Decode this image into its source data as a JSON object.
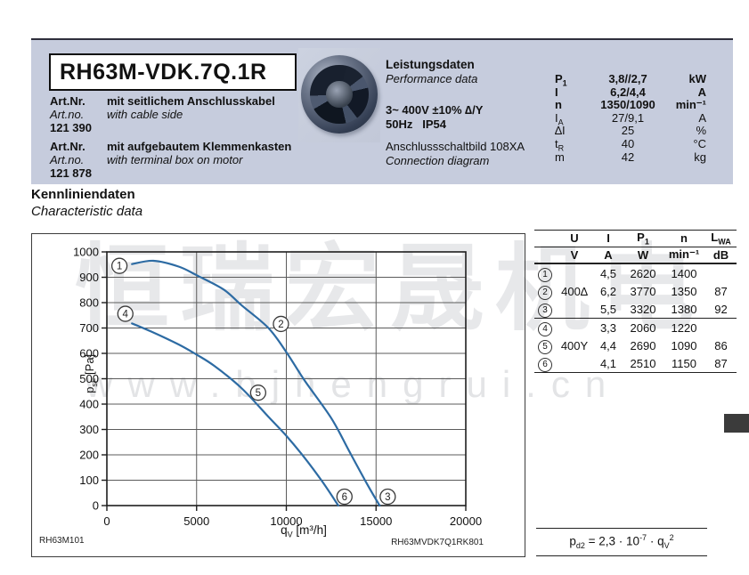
{
  "header": {
    "model": "RH63M-VDK.7Q.1R",
    "art1": {
      "label_de": "Art.Nr.",
      "desc_de": "mit seitlichem Anschlusskabel",
      "label_en": "Art.no.",
      "desc_en": "with cable side",
      "number": "121 390"
    },
    "art2": {
      "label_de": "Art.Nr.",
      "desc_de": "mit aufgebautem Klemmenkasten",
      "label_en": "Art.no.",
      "desc_en": "with terminal box on motor",
      "number": "121 878"
    },
    "performance": {
      "title_de": "Leistungsdaten",
      "title_en": "Performance data",
      "voltage": "3~ 400V ±10% ∆/Y",
      "frequency": "50Hz",
      "protection": "IP54",
      "connection_de": "Anschlussschaltbild 108XA",
      "connection_en": "Connection diagram"
    },
    "params": [
      {
        "sym": "P",
        "sub": "1",
        "value": "3,8//2,7",
        "unit": "kW",
        "bold": true
      },
      {
        "sym": "I",
        "sub": "",
        "value": "6,2/4,4",
        "unit": "A",
        "bold": true
      },
      {
        "sym": "n",
        "sub": "",
        "value": "1350/1090",
        "unit": "min⁻¹",
        "bold": true
      },
      {
        "sym": "I",
        "sub": "A",
        "value": "27/9,1",
        "unit": "A",
        "bold": false
      },
      {
        "sym": "∆I",
        "sub": "",
        "value": "25",
        "unit": "%",
        "bold": false
      },
      {
        "sym": "t",
        "sub": "R",
        "value": "40",
        "unit": "°C",
        "bold": false
      },
      {
        "sym": "m",
        "sub": "",
        "value": "42",
        "unit": "kg",
        "bold": false
      }
    ]
  },
  "section": {
    "title_de": "Kennliniendaten",
    "title_en": "Characteristic data"
  },
  "chart_data": {
    "type": "line",
    "title": "",
    "xlabel": {
      "base": "q",
      "sub": "V",
      "rest": " [m³/h]"
    },
    "ylabel": {
      "base": "p",
      "sub": "sF",
      "rest": " [Pa]"
    },
    "xlim": [
      0,
      20000
    ],
    "ylim": [
      0,
      1000
    ],
    "xticks": [
      0,
      5000,
      10000,
      15000,
      20000
    ],
    "yticks": [
      0,
      100,
      200,
      300,
      400,
      500,
      600,
      700,
      800,
      900,
      1000
    ],
    "grid": true,
    "curve_color": "#2d6ba3",
    "series": [
      {
        "name": "400∆ (1-2-3)",
        "points": [
          [
            1400,
            952
          ],
          [
            2600,
            965
          ],
          [
            4000,
            942
          ],
          [
            5000,
            908
          ],
          [
            6500,
            852
          ],
          [
            7500,
            790
          ],
          [
            9000,
            700
          ],
          [
            10000,
            605
          ],
          [
            11000,
            495
          ],
          [
            12500,
            345
          ],
          [
            13500,
            215
          ],
          [
            14500,
            85
          ],
          [
            15200,
            0
          ]
        ]
      },
      {
        "name": "400Y (4-5-6)",
        "points": [
          [
            1400,
            718
          ],
          [
            2500,
            685
          ],
          [
            4000,
            635
          ],
          [
            5000,
            595
          ],
          [
            6000,
            550
          ],
          [
            7500,
            463
          ],
          [
            9000,
            350
          ],
          [
            10000,
            275
          ],
          [
            11000,
            190
          ],
          [
            12000,
            95
          ],
          [
            12900,
            0
          ]
        ]
      }
    ],
    "markers": [
      {
        "label": "1",
        "x": 700,
        "y": 945
      },
      {
        "label": "2",
        "x": 9700,
        "y": 716
      },
      {
        "label": "3",
        "x": 15650,
        "y": 35
      },
      {
        "label": "4",
        "x": 1030,
        "y": 756
      },
      {
        "label": "5",
        "x": 8430,
        "y": 445
      },
      {
        "label": "6",
        "x": 13240,
        "y": 35
      }
    ],
    "footnote_left": "RH63M101",
    "footnote_right": "RH63MVDK7Q1RK801"
  },
  "table": {
    "columns": [
      {
        "sym": "U",
        "sub": ""
      },
      {
        "sym": "I",
        "sub": ""
      },
      {
        "sym": "P",
        "sub": "1"
      },
      {
        "sym": "n",
        "sub": ""
      },
      {
        "sym": "L",
        "sub": "WA"
      }
    ],
    "units": [
      "V",
      "A",
      "W",
      "min⁻¹",
      "dB"
    ],
    "rows": [
      {
        "num": "1",
        "u": "",
        "i": "4,5",
        "p1": "2620",
        "n": "1400",
        "lwa": ""
      },
      {
        "num": "2",
        "u": "400∆",
        "i": "6,2",
        "p1": "3770",
        "n": "1350",
        "lwa": "87"
      },
      {
        "num": "3",
        "u": "",
        "i": "5,5",
        "p1": "3320",
        "n": "1380",
        "lwa": "92"
      },
      {
        "num": "4",
        "u": "",
        "i": "3,3",
        "p1": "2060",
        "n": "1220",
        "lwa": ""
      },
      {
        "num": "5",
        "u": "400Y",
        "i": "4,4",
        "p1": "2690",
        "n": "1090",
        "lwa": "86"
      },
      {
        "num": "6",
        "u": "",
        "i": "4,1",
        "p1": "2510",
        "n": "1150",
        "lwa": "87"
      }
    ]
  },
  "formula": {
    "base": "p",
    "base_sub": "d2",
    "eq": " = 2,3 · 10",
    "exp": "-7",
    "mid": " · q",
    "mid_sub": "V",
    "power": "2"
  },
  "watermark": {
    "line1": "恒瑞宏晟机电",
    "line2": "www.bjhengrui.cn"
  }
}
